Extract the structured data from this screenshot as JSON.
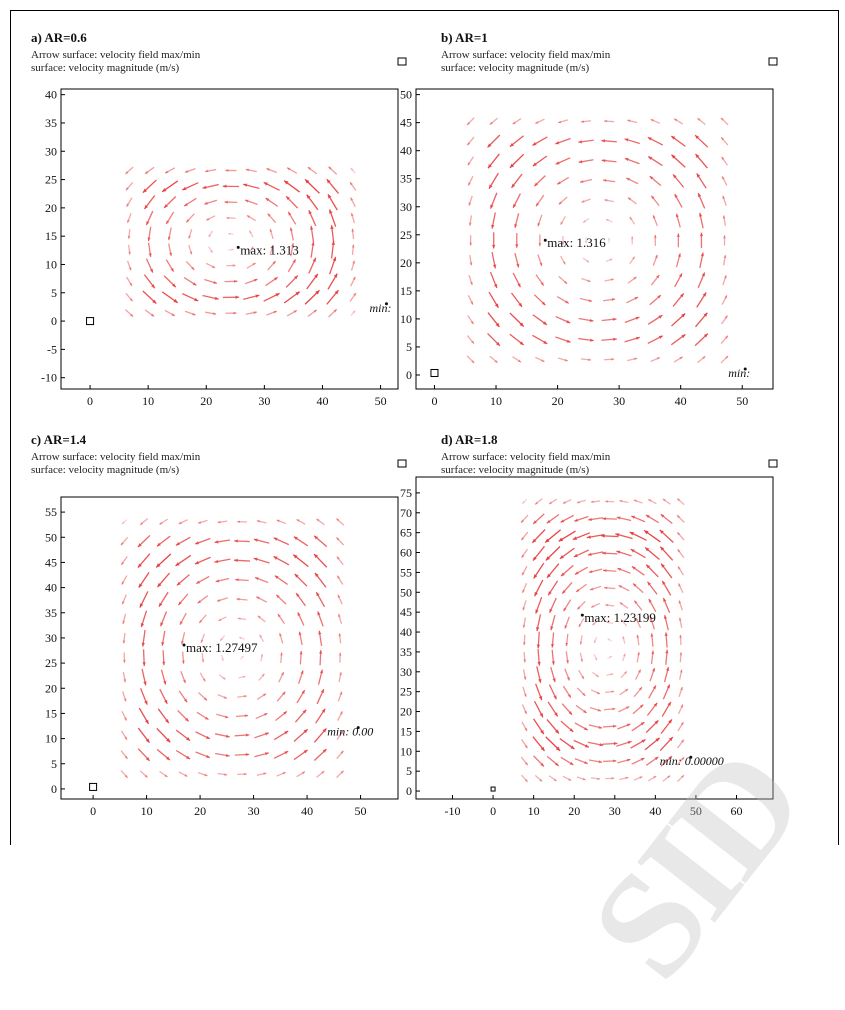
{
  "chart_data": [
    {
      "type": "vector-field",
      "panel_label": "a) AR=0.6",
      "subtitle_1": "Arrow surface: velocity field max/min",
      "subtitle_2": "surface: velocity magnitude (m/s)",
      "xlim": [
        -5,
        53
      ],
      "ylim": [
        -12,
        41
      ],
      "xticks": [
        0,
        10,
        20,
        30,
        40,
        50
      ],
      "yticks": [
        -10,
        -5,
        0,
        5,
        10,
        15,
        20,
        25,
        30,
        35,
        40
      ],
      "cavity": {
        "x": [
          5,
          47
        ],
        "y": [
          0,
          28
        ],
        "eye": [
          24,
          14
        ]
      },
      "max_point": {
        "x": 25.5,
        "y": 12.5,
        "label": "max: 1.313"
      },
      "min_point": {
        "x": 50.5,
        "y": 2,
        "label": "min:"
      }
    },
    {
      "type": "vector-field",
      "panel_label": "b) AR=1",
      "subtitle_1": "Arrow surface: velocity field max/min",
      "subtitle_2": "surface: velocity magnitude (m/s)",
      "xlim": [
        -3,
        55
      ],
      "ylim": [
        -2.5,
        51
      ],
      "xticks": [
        0,
        10,
        20,
        30,
        40,
        50
      ],
      "yticks": [
        0,
        5,
        10,
        15,
        20,
        25,
        30,
        35,
        40,
        45,
        50
      ],
      "cavity": {
        "x": [
          4,
          49
        ],
        "y": [
          1,
          47
        ],
        "eye": [
          27,
          24
        ]
      },
      "max_point": {
        "x": 18,
        "y": 23.5,
        "label": "max: 1.316"
      },
      "min_point": {
        "x": 50,
        "y": 0,
        "label": "min:"
      }
    },
    {
      "type": "vector-field",
      "panel_label": "c) AR=1.4",
      "subtitle_1": "Arrow surface: velocity field max/min",
      "subtitle_2": "surface: velocity magnitude (m/s)",
      "xlim": [
        -6,
        57
      ],
      "ylim": [
        -2,
        58
      ],
      "xticks": [
        0,
        10,
        20,
        30,
        40,
        50
      ],
      "yticks": [
        0,
        5,
        10,
        15,
        20,
        25,
        30,
        35,
        40,
        45,
        50,
        55
      ],
      "cavity": {
        "x": [
          4,
          48
        ],
        "y": [
          1,
          55
        ],
        "eye": [
          27,
          27
        ]
      },
      "max_point": {
        "x": 17,
        "y": 28,
        "label": "max: 1.27497"
      },
      "min_point": {
        "x": 49,
        "y": 11,
        "label": "min: 0.00"
      }
    },
    {
      "type": "vector-field",
      "panel_label": "d) AR=1.8",
      "subtitle_1": "Arrow surface: velocity field max/min",
      "subtitle_2": "surface: velocity magnitude (m/s)",
      "xlim": [
        -19,
        69
      ],
      "ylim": [
        -2,
        79
      ],
      "xticks": [
        -10,
        0,
        10,
        20,
        30,
        40,
        50,
        60
      ],
      "yticks": [
        0,
        5,
        10,
        15,
        20,
        25,
        30,
        35,
        40,
        45,
        50,
        55,
        60,
        65,
        70,
        75
      ],
      "cavity": {
        "x": [
          6,
          48
        ],
        "y": [
          1,
          75
        ],
        "eye": [
          28,
          36
        ]
      },
      "max_point": {
        "x": 22,
        "y": 43.5,
        "label": "max: 1.23199"
      },
      "min_point": {
        "x": 48,
        "y": 7,
        "label": "min: 0.00000"
      }
    }
  ],
  "watermark": "SID",
  "colors": {
    "arrow": "#e63b3b",
    "axis": "#000000",
    "text": "#111111"
  }
}
